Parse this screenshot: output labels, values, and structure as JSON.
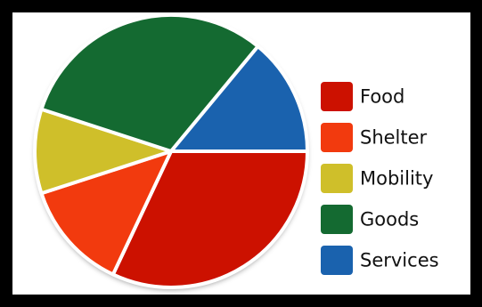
{
  "chart_data": {
    "type": "pie",
    "title": "",
    "categories": [
      "Food",
      "Shelter",
      "Mobility",
      "Goods",
      "Services"
    ],
    "values": [
      32,
      13,
      10,
      31,
      14
    ],
    "colors": [
      "#cc1100",
      "#f23a0e",
      "#cfbf2a",
      "#146a31",
      "#1a62ae"
    ],
    "start_angle_deg": 0,
    "direction": "clockwise",
    "legend": {
      "position": "right",
      "entries": [
        "Food",
        "Shelter",
        "Mobility",
        "Goods",
        "Services"
      ]
    }
  }
}
